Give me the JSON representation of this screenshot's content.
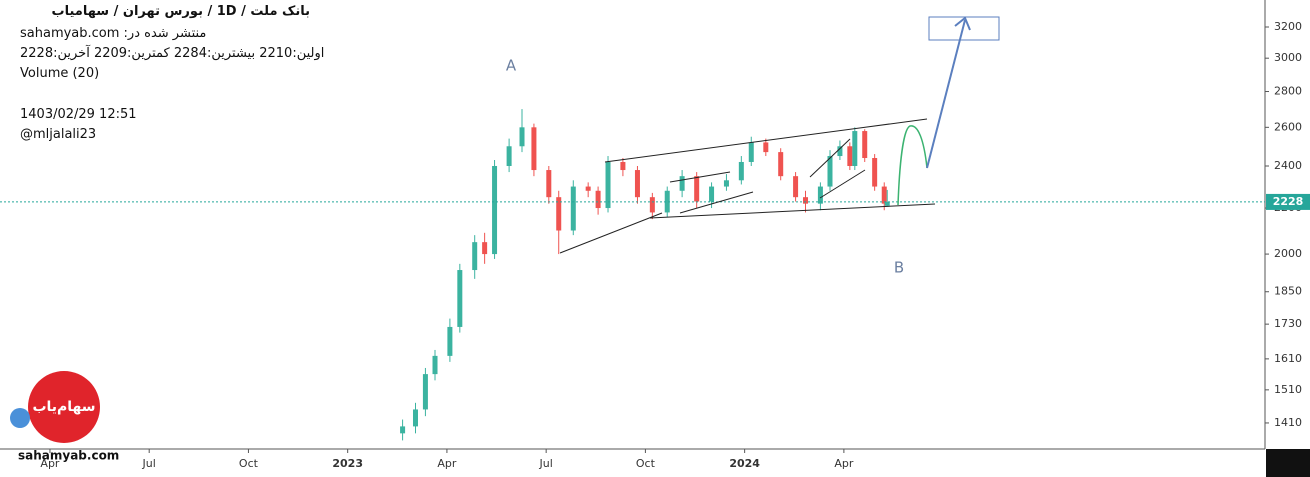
{
  "chart_data": {
    "type": "candlestick",
    "title": "بانک ملت /  1D  /  بورس تهران / سهامیاب",
    "published": "منتشر شده در: sahamyab.com",
    "ohlc_text": "اولین:2210  بیشترین:2284  کمترین:2209  آخرین:2228",
    "volume_label": "Volume (20)",
    "timestamp": "1403/02/29 12:51",
    "author": "@mljalali23",
    "watermark": "sahamyab.com",
    "logo_text": "سهام‌یاب",
    "annotations": [
      "A",
      "B"
    ],
    "log_scale": true,
    "up_color": "#3bb3a0",
    "down_color": "#ef5350",
    "x": [
      13.66,
      14.05,
      14.35,
      14.64,
      15.09,
      15.39,
      15.84,
      16.14,
      16.44,
      16.88,
      17.27,
      17.63,
      18.08,
      18.38,
      18.82,
      19.27,
      19.57,
      19.87,
      20.32,
      20.76,
      21.21,
      21.66,
      22.11,
      22.55,
      23.0,
      23.45,
      23.9,
      24.2,
      24.64,
      25.09,
      25.54,
      25.84,
      26.29,
      26.58,
      26.88,
      27.18,
      27.33,
      27.63,
      27.93,
      28.22,
      28.31
    ],
    "open": [
      1380,
      1400,
      1450,
      1560,
      1620,
      1720,
      1935,
      2050,
      2000,
      2400,
      2500,
      2600,
      2380,
      2250,
      2100,
      2300,
      2280,
      2200,
      2420,
      2380,
      2250,
      2180,
      2280,
      2350,
      2230,
      2300,
      2330,
      2420,
      2520,
      2470,
      2350,
      2250,
      2220,
      2300,
      2450,
      2500,
      2400,
      2580,
      2440,
      2300,
      2210
    ],
    "high": [
      1420,
      1470,
      1580,
      1640,
      1750,
      1960,
      2080,
      2090,
      2430,
      2540,
      2700,
      2620,
      2400,
      2280,
      2330,
      2320,
      2300,
      2450,
      2440,
      2400,
      2270,
      2300,
      2380,
      2370,
      2320,
      2360,
      2450,
      2550,
      2540,
      2490,
      2370,
      2280,
      2320,
      2480,
      2530,
      2520,
      2600,
      2590,
      2460,
      2320,
      2284
    ],
    "low": [
      1360,
      1380,
      1430,
      1540,
      1600,
      1700,
      1900,
      1960,
      1980,
      2370,
      2470,
      2350,
      2220,
      2000,
      2080,
      2250,
      2170,
      2180,
      2350,
      2220,
      2150,
      2160,
      2250,
      2200,
      2200,
      2280,
      2310,
      2400,
      2450,
      2330,
      2230,
      2180,
      2190,
      2280,
      2430,
      2380,
      2380,
      2420,
      2280,
      2190,
      2209
    ],
    "close": [
      1400,
      1450,
      1560,
      1620,
      1720,
      1935,
      2050,
      2000,
      2400,
      2500,
      2600,
      2380,
      2250,
      2100,
      2300,
      2280,
      2200,
      2420,
      2380,
      2250,
      2180,
      2280,
      2350,
      2230,
      2300,
      2330,
      2420,
      2520,
      2470,
      2350,
      2250,
      2220,
      2300,
      2450,
      2500,
      2400,
      2580,
      2440,
      2300,
      2220,
      2228
    ],
    "xlim": [
      1.49,
      39.73
    ],
    "xticks": [
      {
        "value": 3,
        "label": "Apr"
      },
      {
        "value": 6,
        "label": "Jul"
      },
      {
        "value": 9,
        "label": "Oct"
      },
      {
        "value": 12,
        "label": "2023"
      },
      {
        "value": 15,
        "label": "Apr"
      },
      {
        "value": 18,
        "label": "Jul"
      },
      {
        "value": 21,
        "label": "Oct"
      },
      {
        "value": 24,
        "label": "2024"
      },
      {
        "value": 27,
        "label": "Apr"
      }
    ],
    "ylim": [
      1336,
      3384
    ],
    "yticks": [
      1410,
      1510,
      1610,
      1730,
      1850,
      2000,
      2200,
      2400,
      2600,
      2800,
      3000,
      3200
    ]
  }
}
